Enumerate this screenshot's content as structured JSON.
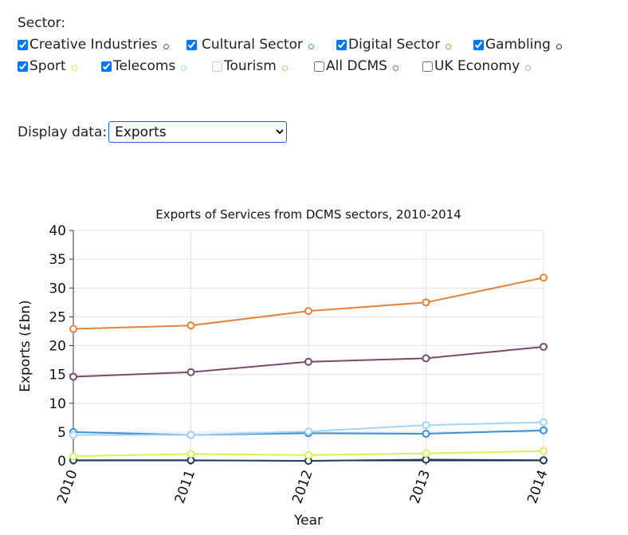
{
  "filters": {
    "sector_label": "Sector:",
    "items": [
      {
        "label": "Creative Industries",
        "checked": true,
        "disabled": false,
        "color": "#7b4a6b"
      },
      {
        "label": "Cultural Sector",
        "checked": true,
        "disabled": false,
        "color": "#3b8fd6"
      },
      {
        "label": "Digital Sector",
        "checked": true,
        "disabled": false,
        "color": "#e5823a"
      },
      {
        "label": "Gambling",
        "checked": true,
        "disabled": false,
        "color": "#1b3d63"
      },
      {
        "label": "Sport",
        "checked": true,
        "disabled": false,
        "color": "#d8f05a"
      },
      {
        "label": "Telecoms",
        "checked": true,
        "disabled": false,
        "color": "#a3d4f7"
      },
      {
        "label": "Tourism",
        "checked": false,
        "disabled": true,
        "color": "#f4b07a"
      },
      {
        "label": "All DCMS",
        "checked": false,
        "disabled": false,
        "color": "#c0508a"
      },
      {
        "label": "UK Economy",
        "checked": false,
        "disabled": false,
        "color": "#b0b0b0"
      }
    ]
  },
  "display": {
    "label": "Display data:",
    "selected": "Exports"
  },
  "chart_data": {
    "type": "line",
    "title": "Exports of Services from DCMS sectors, 2010-2014",
    "xlabel": "Year",
    "ylabel": "Exports (£bn)",
    "x": [
      "2010",
      "2011",
      "2012",
      "2013",
      "2014"
    ],
    "ylim": [
      0,
      40
    ],
    "yticks": [
      0,
      5,
      10,
      15,
      20,
      25,
      30,
      35,
      40
    ],
    "grid": true,
    "series": [
      {
        "name": "Creative Industries",
        "color": "#7b4a6b",
        "values": [
          14.6,
          15.4,
          17.2,
          17.8,
          19.8
        ]
      },
      {
        "name": "Cultural Sector",
        "color": "#3b8fd6",
        "values": [
          5.0,
          4.5,
          4.8,
          4.7,
          5.3
        ]
      },
      {
        "name": "Digital Sector",
        "color": "#e5823a",
        "values": [
          22.9,
          23.5,
          26.0,
          27.5,
          31.8
        ]
      },
      {
        "name": "Gambling",
        "color": "#1b3d63",
        "values": [
          0.1,
          0.1,
          0.0,
          0.2,
          0.1
        ]
      },
      {
        "name": "Sport",
        "color": "#d8f05a",
        "values": [
          0.8,
          1.2,
          1.0,
          1.3,
          1.7
        ]
      },
      {
        "name": "Telecoms",
        "color": "#a3d4f7",
        "values": [
          4.5,
          4.5,
          5.1,
          6.2,
          6.7
        ]
      }
    ]
  }
}
